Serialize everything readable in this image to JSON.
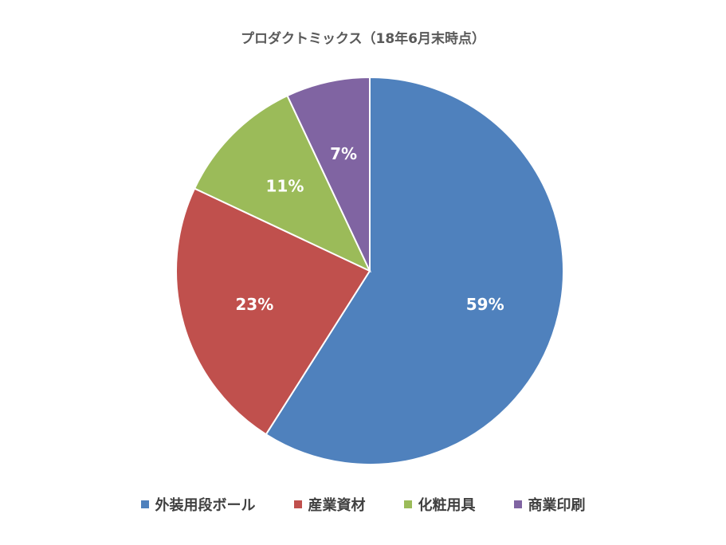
{
  "chart_data": {
    "type": "pie",
    "title": "プロダクトミックス（18年6月末時点）",
    "legend_position": "bottom",
    "slices": [
      {
        "name": "外装用段ボール",
        "value": 59,
        "label": "59%",
        "color": "#4F81BD"
      },
      {
        "name": "産業資材",
        "value": 23,
        "label": "23%",
        "color": "#C0504D"
      },
      {
        "name": "化粧用具",
        "value": 11,
        "label": "11%",
        "color": "#9BBB59"
      },
      {
        "name": "商業印刷",
        "value": 7,
        "label": "7%",
        "color": "#8064A2"
      }
    ]
  }
}
